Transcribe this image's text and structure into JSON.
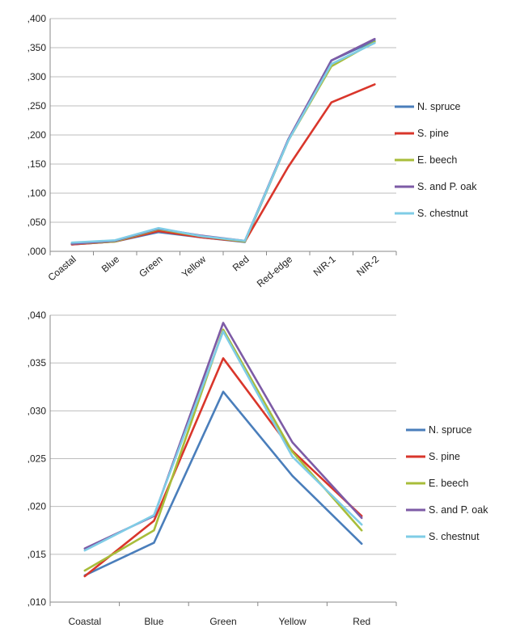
{
  "chart_data": [
    {
      "type": "line",
      "categories": [
        "Coastal",
        "Blue",
        "Green",
        "Yellow",
        "Red",
        "Red-edge",
        "NIR-1",
        "NIR-2"
      ],
      "ylim": [
        0,
        0.4
      ],
      "yticks": [
        ",000",
        ",050",
        ",100",
        ",150",
        ",200",
        ",250",
        ",300",
        ",350",
        ",400"
      ],
      "grid": true,
      "legend_position": "right",
      "series": [
        {
          "name": "N. spruce",
          "color": "#4a7ebb",
          "values": [
            0.012,
            0.017,
            0.033,
            0.024,
            0.016,
            0.19,
            0.328,
            0.362
          ]
        },
        {
          "name": "S. pine",
          "color": "#d9362b",
          "values": [
            0.012,
            0.017,
            0.035,
            0.024,
            0.017,
            0.145,
            0.256,
            0.287
          ]
        },
        {
          "name": "E. beech",
          "color": "#a8bd3a",
          "values": [
            0.013,
            0.017,
            0.038,
            0.026,
            0.017,
            0.19,
            0.318,
            0.36
          ]
        },
        {
          "name": "S. and P. oak",
          "color": "#7d5ba6",
          "values": [
            0.013,
            0.018,
            0.039,
            0.027,
            0.018,
            0.192,
            0.328,
            0.365
          ]
        },
        {
          "name": "S. chestnut",
          "color": "#7fcce6",
          "values": [
            0.015,
            0.019,
            0.04,
            0.026,
            0.018,
            0.19,
            0.322,
            0.358
          ]
        }
      ]
    },
    {
      "type": "line",
      "categories": [
        "Coastal",
        "Blue",
        "Green",
        "Yellow",
        "Red"
      ],
      "ylim": [
        0.01,
        0.04
      ],
      "yticks": [
        ",010",
        ",015",
        ",020",
        ",025",
        ",030",
        ",035",
        ",040"
      ],
      "grid": true,
      "legend_position": "right",
      "series": [
        {
          "name": "N. spruce",
          "color": "#4a7ebb",
          "values": [
            0.0128,
            0.0162,
            0.032,
            0.0232,
            0.0161
          ]
        },
        {
          "name": "S. pine",
          "color": "#d9362b",
          "values": [
            0.0127,
            0.0185,
            0.0355,
            0.0258,
            0.019
          ]
        },
        {
          "name": "E. beech",
          "color": "#a8bd3a",
          "values": [
            0.0133,
            0.0175,
            0.0385,
            0.0257,
            0.0175
          ]
        },
        {
          "name": "S. and P. oak",
          "color": "#7d5ba6",
          "values": [
            0.0156,
            0.019,
            0.0392,
            0.0267,
            0.0188
          ]
        },
        {
          "name": "S. chestnut",
          "color": "#7fcce6",
          "values": [
            0.0154,
            0.0191,
            0.0383,
            0.0252,
            0.0181
          ]
        }
      ]
    }
  ]
}
